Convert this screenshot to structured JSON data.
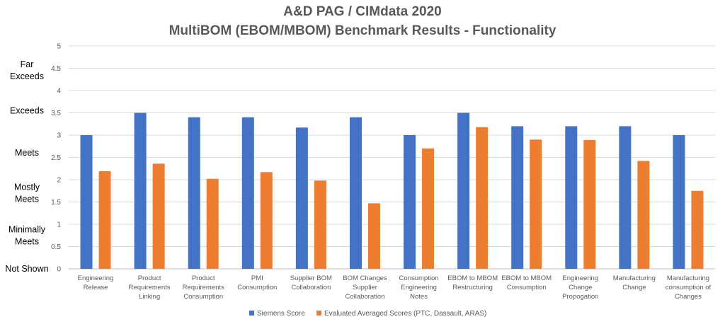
{
  "chart_data": {
    "type": "bar",
    "title": "A&D PAG / CIMdata 2020",
    "subtitle": "MultiBOM (EBOM/MBOM) Benchmark Results - Functionality",
    "categories": [
      [
        "Engineering",
        "Release"
      ],
      [
        "Product",
        "Requirements",
        "Linking"
      ],
      [
        "Product",
        "Requirements",
        "Consumption"
      ],
      [
        "PMI",
        "Consumption"
      ],
      [
        "Supplier BOM",
        "Collaboration"
      ],
      [
        "BOM Changes",
        "Supplier",
        "Collaboration"
      ],
      [
        "Consumption",
        "Engineering",
        "Notes"
      ],
      [
        "EBOM to MBOM",
        "Restructuring"
      ],
      [
        "EBOM to MBOM",
        "Consumption"
      ],
      [
        "Engineering",
        "Change",
        "Propogation"
      ],
      [
        "Manufacturing",
        "Change"
      ],
      [
        "Manufacturing",
        "consumption of",
        "Changes"
      ]
    ],
    "series": [
      {
        "name": "Siemens Score",
        "color": "#4472C4",
        "values": [
          3.0,
          3.5,
          3.4,
          3.4,
          3.17,
          3.4,
          3.0,
          3.5,
          3.2,
          3.2,
          3.2,
          3.0
        ]
      },
      {
        "name": "Evaluated Averaged Scores (PTC, Dassault, ARAS)",
        "color": "#ED7D31",
        "values": [
          2.19,
          2.36,
          2.02,
          2.17,
          1.98,
          1.47,
          2.7,
          3.18,
          2.9,
          2.89,
          2.42,
          1.75
        ]
      }
    ],
    "yticks": [
      "0",
      "0.5",
      "1",
      "1.5",
      "2",
      "2.5",
      "3",
      "3.5",
      "4",
      "4.5",
      "5"
    ],
    "ylim": [
      0,
      5
    ],
    "qualitative_labels": [
      {
        "value": 0,
        "lines": [
          "Not Shown"
        ]
      },
      {
        "value": 0.75,
        "lines": [
          "Minimally",
          "Meets"
        ]
      },
      {
        "value": 1.7,
        "lines": [
          "Mostly",
          "Meets"
        ]
      },
      {
        "value": 2.6,
        "lines": [
          "Meets"
        ]
      },
      {
        "value": 3.55,
        "lines": [
          "Exceeds"
        ]
      },
      {
        "value": 4.45,
        "lines": [
          "Far",
          "Exceeds"
        ]
      }
    ],
    "grid": true,
    "legend_position": "bottom"
  }
}
